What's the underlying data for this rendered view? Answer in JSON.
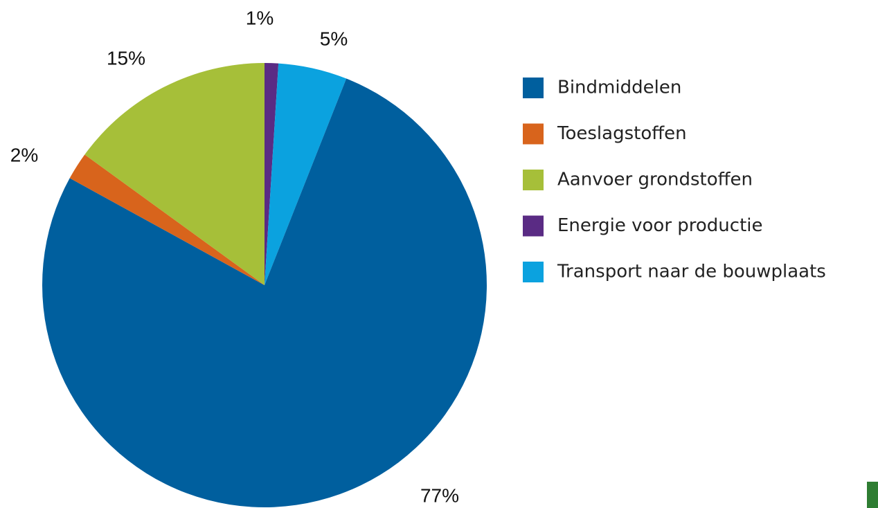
{
  "chart_data": {
    "type": "pie",
    "categories": [
      "Bindmiddelen",
      "Toeslagstoffen",
      "Aanvoer grondstoffen",
      "Energie voor productie",
      "Transport naar de bouwplaats"
    ],
    "values": [
      77,
      2,
      15,
      1,
      5
    ],
    "value_labels": [
      "77%",
      "2%",
      "15%",
      "1%",
      "5%"
    ],
    "colors": [
      "#005f9e",
      "#d8641c",
      "#a6bf39",
      "#5a2b84",
      "#0ba2df"
    ],
    "legend": "right"
  }
}
